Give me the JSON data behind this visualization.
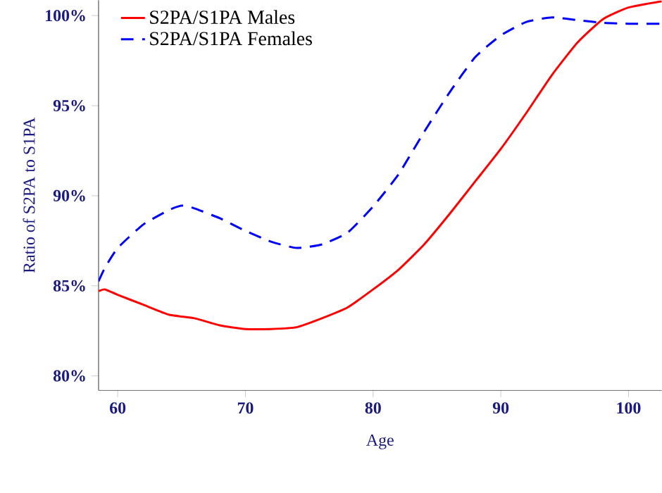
{
  "chart_data": {
    "type": "line",
    "xlabel": "Age",
    "ylabel": "Ratio of S2PA to S1PA",
    "xlim": [
      58.5,
      102.6
    ],
    "ylim": [
      79.2,
      100.85
    ],
    "xticks": [
      60,
      70,
      80,
      90,
      100
    ],
    "yticks": [
      {
        "value": 80,
        "label": "80%"
      },
      {
        "value": 85,
        "label": "85%"
      },
      {
        "value": 90,
        "label": "90%"
      },
      {
        "value": 95,
        "label": "95%"
      },
      {
        "value": 100,
        "label": "100%"
      }
    ],
    "x": [
      58.5,
      59,
      60,
      62,
      64,
      66,
      68,
      70,
      72,
      74,
      76,
      78,
      80,
      82,
      84,
      86,
      88,
      90,
      92,
      94,
      96,
      98,
      100,
      102.6
    ],
    "series": [
      {
        "name": "S2PA/S1PA Males",
        "color": "#ff0000",
        "line_style": "solid",
        "values": [
          84.7,
          84.8,
          84.5,
          83.95,
          83.4,
          83.2,
          82.8,
          82.6,
          82.6,
          82.7,
          83.2,
          83.8,
          84.8,
          85.9,
          87.3,
          89.0,
          90.8,
          92.6,
          94.6,
          96.7,
          98.5,
          99.8,
          100.45,
          100.8
        ]
      },
      {
        "name": "S2PA/S1PA Females",
        "color": "#0000ff",
        "line_style": "dashed",
        "x": [
          58.5,
          59,
          60,
          62,
          64,
          65,
          66,
          68,
          70,
          72,
          74,
          76,
          78,
          80,
          82,
          84,
          86,
          88,
          90,
          92,
          94,
          96,
          98,
          100,
          102.6
        ],
        "values": [
          85.25,
          86.0,
          87.1,
          88.4,
          89.2,
          89.45,
          89.3,
          88.75,
          88.05,
          87.45,
          87.1,
          87.3,
          87.95,
          89.4,
          91.2,
          93.55,
          95.75,
          97.7,
          98.9,
          99.65,
          99.9,
          99.75,
          99.6,
          99.55,
          99.55
        ]
      }
    ],
    "legend": "top left",
    "grid": false
  }
}
